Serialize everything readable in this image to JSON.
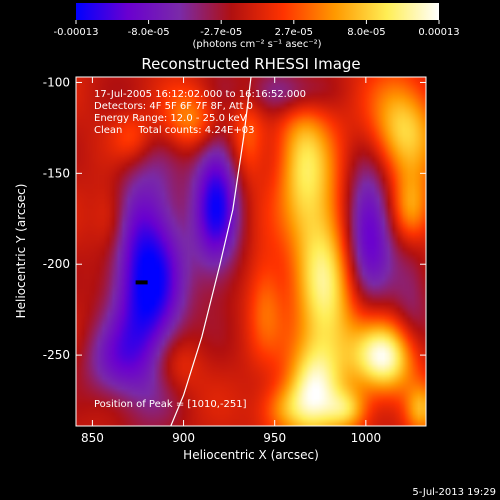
{
  "chart_data": {
    "type": "heatmap",
    "title": "Reconstructed RHESSI Image",
    "xlabel": "Heliocentric X (arcsec)",
    "ylabel": "Heliocentric Y (arcsec)",
    "xlim": [
      841,
      1033
    ],
    "ylim": [
      -289,
      -97
    ],
    "x_ticks": [
      850,
      900,
      950,
      1000
    ],
    "y_ticks": [
      -100,
      -150,
      -200,
      -250
    ],
    "colorbar": {
      "min": -0.00013,
      "max": 0.00013,
      "tick_labels": [
        "-0.00013",
        "-8.0e-05",
        "-2.7e-05",
        "2.7e-05",
        "8.0e-05",
        "0.00013"
      ],
      "label": "(photons cm⁻² s⁻¹ asec⁻²)",
      "colors": [
        "#0000ff",
        "#6a00d0",
        "#7a2aa8",
        "#b01010",
        "#ff3300",
        "#ff9900",
        "#ffee55",
        "#ffffff"
      ]
    },
    "annotations": [
      "17-Jul-2005 16:12:02.000 to 16:16:52.000",
      "Detectors: 4F 5F 6F 7F 8F, Att 0",
      "Energy Range: 12.0 - 25.0 keV",
      "Clean     Total counts: 4.24E+03"
    ],
    "peak_label": "Position of Peak = [1010,-251]",
    "limb_curve": [
      [
        937,
        -97
      ],
      [
        933,
        -130
      ],
      [
        927,
        -170
      ],
      [
        920,
        -200
      ],
      [
        910,
        -240
      ],
      [
        900,
        -272
      ],
      [
        893,
        -289
      ]
    ],
    "source_mark": [
      877,
      -210
    ],
    "blobs": [
      {
        "x": 880,
        "y": -210,
        "sx": 14,
        "sy": 42,
        "v": -1.0
      },
      {
        "x": 918,
        "y": -165,
        "sx": 9,
        "sy": 30,
        "v": -0.85
      },
      {
        "x": 1001,
        "y": -180,
        "sx": 10,
        "sy": 26,
        "v": -0.8
      },
      {
        "x": 955,
        "y": -105,
        "sx": 16,
        "sy": 10,
        "v": -0.5
      },
      {
        "x": 860,
        "y": -255,
        "sx": 12,
        "sy": 15,
        "v": -0.35
      },
      {
        "x": 1025,
        "y": -215,
        "sx": 8,
        "sy": 25,
        "v": -0.3
      },
      {
        "x": 905,
        "y": -120,
        "sx": 12,
        "sy": 12,
        "v": 0.5
      },
      {
        "x": 935,
        "y": -130,
        "sx": 7,
        "sy": 18,
        "v": 0.35
      },
      {
        "x": 872,
        "y": -130,
        "sx": 8,
        "sy": 10,
        "v": 0.3
      },
      {
        "x": 965,
        "y": -145,
        "sx": 10,
        "sy": 30,
        "v": 0.6
      },
      {
        "x": 978,
        "y": -215,
        "sx": 12,
        "sy": 45,
        "v": 0.8
      },
      {
        "x": 970,
        "y": -270,
        "sx": 10,
        "sy": 18,
        "v": 0.6
      },
      {
        "x": 1010,
        "y": -251,
        "sx": 12,
        "sy": 14,
        "v": 1.0
      },
      {
        "x": 1020,
        "y": -125,
        "sx": 13,
        "sy": 20,
        "v": 0.7
      },
      {
        "x": 1025,
        "y": -170,
        "sx": 8,
        "sy": 14,
        "v": 0.6
      },
      {
        "x": 945,
        "y": -220,
        "sx": 7,
        "sy": 20,
        "v": 0.35
      },
      {
        "x": 955,
        "y": -280,
        "sx": 10,
        "sy": 10,
        "v": 0.4
      },
      {
        "x": 990,
        "y": -280,
        "sx": 8,
        "sy": 8,
        "v": 0.5
      },
      {
        "x": 895,
        "y": -255,
        "sx": 10,
        "sy": 12,
        "v": 0.3
      },
      {
        "x": 860,
        "y": -175,
        "sx": 7,
        "sy": 14,
        "v": 0.3
      },
      {
        "x": 1030,
        "y": -280,
        "sx": 6,
        "sy": 10,
        "v": 0.5
      }
    ]
  },
  "footer": {
    "date": "5-Jul-2013 19:29"
  }
}
